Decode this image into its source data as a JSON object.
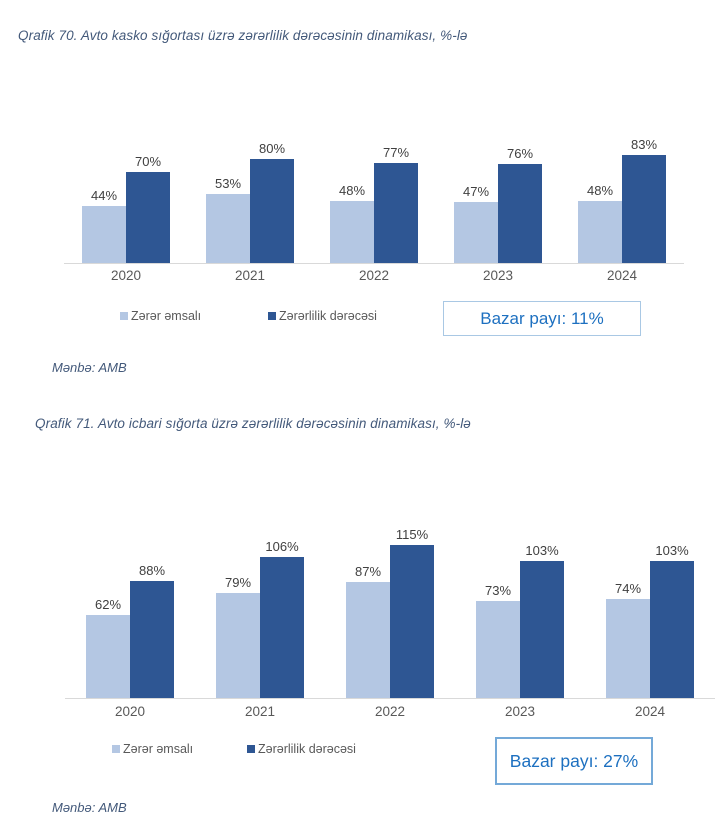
{
  "chart_data": [
    {
      "type": "bar",
      "title": "Qrafik 70. Avto kasko sığortası üzrə zərərlilik dərəcəsinin dinamikası, %-lə",
      "categories": [
        "2020",
        "2021",
        "2022",
        "2023",
        "2024"
      ],
      "series": [
        {
          "name": "Zərər əmsalı",
          "color": "#b4c7e3",
          "values": [
            44,
            53,
            48,
            47,
            48
          ]
        },
        {
          "name": "Zərərlilik dərəcəsi",
          "color": "#2e5693",
          "values": [
            70,
            80,
            77,
            76,
            83
          ]
        }
      ],
      "unit": "%",
      "ylim": [
        0,
        110
      ],
      "grid": false,
      "data_labels": true,
      "legend_position": "bottom",
      "annotation": "Bazar payı: 11%",
      "annotation_text_color": "#1d70c0",
      "annotation_border_color": "#a9c8e4",
      "source": "Mənbə: AMB"
    },
    {
      "type": "bar",
      "title": "Qrafik 71. Avto icbari sığorta üzrə zərərlilik dərəcəsinin dinamikası, %-lə",
      "categories": [
        "2020",
        "2021",
        "2022",
        "2023",
        "2024"
      ],
      "series": [
        {
          "name": "Zərər əmsalı",
          "color": "#b4c7e3",
          "values": [
            62,
            79,
            87,
            73,
            74
          ]
        },
        {
          "name": "Zərərlilik dərəcəsi",
          "color": "#2e5693",
          "values": [
            88,
            106,
            115,
            103,
            103
          ]
        }
      ],
      "unit": "%",
      "ylim": [
        0,
        150
      ],
      "grid": false,
      "data_labels": true,
      "legend_position": "bottom",
      "annotation": "Bazar payı: 27%",
      "annotation_text_color": "#1d70c0",
      "annotation_border_color": "#74a9d8",
      "source": "Mənbə: AMB"
    }
  ]
}
